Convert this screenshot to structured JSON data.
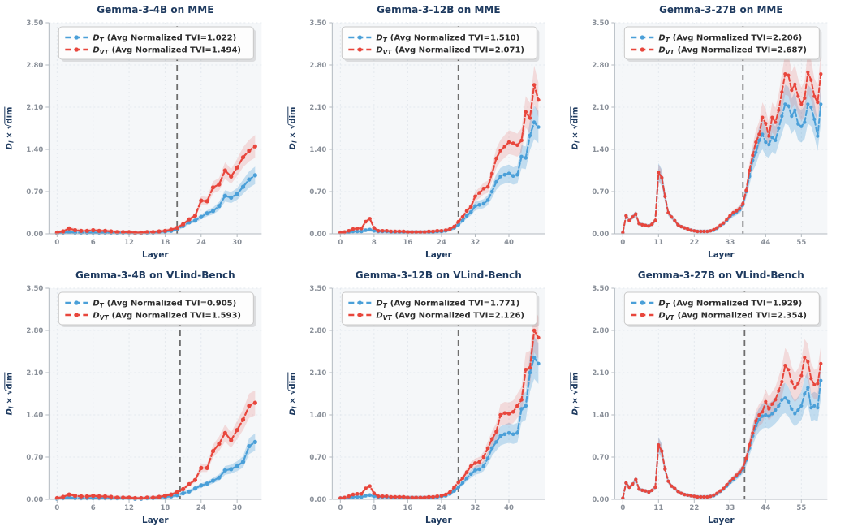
{
  "legend": {
    "d": "D"
  },
  "ylabel_parts": {
    "d": "D",
    "sub": "l",
    "times": "×",
    "root": "√",
    "dim": "dim"
  },
  "style": {
    "blue": "#4a9fd8",
    "red": "#e8463c",
    "blue_band": "rgba(74,159,216,0.30)",
    "red_band": "rgba(232,70,60,0.16)",
    "title_color": "#1e3a5f",
    "tick_color": "#8a9099",
    "grid_color": "#e4e9ee",
    "plot_bg": "#f5f7f9",
    "vline_color": "#6e6e6e",
    "spine_color": "#b3bac0",
    "legend_border": "#c9c9c9",
    "legend_text": "#2d2d2d",
    "band_frac_blue": 0.15,
    "band_frac_red": 0.13,
    "band_min": 0.03
  },
  "chart_data": [
    {
      "type": "line",
      "title": "Gemma-3-4B on MME",
      "xlabel": "Layer",
      "ylabel": "D_l × √dim",
      "ylim": [
        0,
        3.5
      ],
      "yticks": [
        0,
        0.7,
        1.4,
        2.1,
        2.8,
        3.5
      ],
      "ytick_labels": [
        "0.00",
        "0.70",
        "1.40",
        "2.10",
        "2.80",
        "3.50"
      ],
      "xticks": [
        0,
        6,
        12,
        18,
        24,
        30
      ],
      "xtick_labels": [
        "0",
        "6",
        "12",
        "18",
        "24",
        "30"
      ],
      "vline_x": 20,
      "series": [
        {
          "name": "D_T",
          "sub": "T",
          "label": "D_T (Avg Normalized TVI=1.022)",
          "legend_rest": "(Avg Normalized TVI=1.022)",
          "color_key": "blue",
          "values": [
            0.01,
            0.02,
            0.03,
            0.02,
            0.02,
            0.02,
            0.02,
            0.02,
            0.02,
            0.02,
            0.02,
            0.02,
            0.02,
            0.01,
            0.01,
            0.02,
            0.02,
            0.03,
            0.04,
            0.05,
            0.08,
            0.13,
            0.19,
            0.22,
            0.28,
            0.34,
            0.38,
            0.46,
            0.63,
            0.6,
            0.66,
            0.78,
            0.9,
            0.97
          ]
        },
        {
          "name": "D_VT",
          "sub": "VT",
          "label": "D_VT (Avg Normalized TVI=1.494)",
          "legend_rest": "(Avg Normalized TVI=1.494)",
          "color_key": "red",
          "values": [
            0.02,
            0.04,
            0.09,
            0.06,
            0.05,
            0.05,
            0.06,
            0.05,
            0.05,
            0.04,
            0.03,
            0.03,
            0.03,
            0.02,
            0.02,
            0.03,
            0.03,
            0.04,
            0.05,
            0.07,
            0.1,
            0.16,
            0.24,
            0.3,
            0.55,
            0.54,
            0.77,
            0.82,
            1.05,
            0.95,
            1.1,
            1.27,
            1.38,
            1.45
          ]
        }
      ]
    },
    {
      "type": "line",
      "title": "Gemma-3-12B on MME",
      "xlabel": "Layer",
      "ylabel": "D_l × √dim",
      "ylim": [
        0,
        3.5
      ],
      "yticks": [
        0,
        0.7,
        1.4,
        2.1,
        2.8,
        3.5
      ],
      "ytick_labels": [
        "0.00",
        "0.70",
        "1.40",
        "2.10",
        "2.80",
        "3.50"
      ],
      "xticks": [
        0,
        8,
        16,
        24,
        32,
        40
      ],
      "xtick_labels": [
        "0",
        "8",
        "16",
        "24",
        "32",
        "40"
      ],
      "vline_x": 28,
      "series": [
        {
          "name": "D_T",
          "sub": "T",
          "label": "D_T (Avg Normalized TVI=1.510)",
          "legend_rest": "(Avg Normalized TVI=1.510)",
          "color_key": "blue",
          "values": [
            0.02,
            0.02,
            0.03,
            0.04,
            0.04,
            0.04,
            0.06,
            0.07,
            0.05,
            0.04,
            0.04,
            0.04,
            0.03,
            0.03,
            0.03,
            0.03,
            0.03,
            0.03,
            0.03,
            0.03,
            0.03,
            0.03,
            0.03,
            0.04,
            0.04,
            0.05,
            0.07,
            0.1,
            0.15,
            0.22,
            0.3,
            0.36,
            0.46,
            0.48,
            0.5,
            0.56,
            0.7,
            0.86,
            0.95,
            0.98,
            1.0,
            0.96,
            0.98,
            1.28,
            1.26,
            1.63,
            1.85,
            1.77
          ]
        },
        {
          "name": "D_VT",
          "sub": "VT",
          "label": "D_VT (Avg Normalized TVI=2.071)",
          "legend_rest": "(Avg Normalized TVI=2.071)",
          "color_key": "red",
          "values": [
            0.02,
            0.03,
            0.05,
            0.08,
            0.09,
            0.09,
            0.2,
            0.25,
            0.1,
            0.05,
            0.05,
            0.05,
            0.04,
            0.04,
            0.04,
            0.04,
            0.03,
            0.03,
            0.03,
            0.03,
            0.03,
            0.04,
            0.04,
            0.05,
            0.05,
            0.06,
            0.08,
            0.12,
            0.2,
            0.28,
            0.38,
            0.45,
            0.62,
            0.68,
            0.75,
            0.78,
            1.0,
            1.25,
            1.38,
            1.45,
            1.52,
            1.5,
            1.47,
            1.55,
            2.02,
            1.92,
            2.47,
            2.22
          ]
        }
      ]
    },
    {
      "type": "line",
      "title": "Gemma-3-27B on MME",
      "xlabel": "Layer",
      "ylabel": "D_l × √dim",
      "ylim": [
        0,
        3.5
      ],
      "yticks": [
        0,
        0.7,
        1.4,
        2.1,
        2.8,
        3.5
      ],
      "ytick_labels": [
        "0.00",
        "0.70",
        "1.40",
        "2.10",
        "2.80",
        "3.50"
      ],
      "xticks": [
        0,
        11,
        22,
        33,
        44,
        55
      ],
      "xtick_labels": [
        "0",
        "11",
        "22",
        "33",
        "44",
        "55"
      ],
      "vline_x": 37,
      "series": [
        {
          "name": "D_T",
          "sub": "T",
          "label": "D_T (Avg Normalized TVI=2.206)",
          "legend_rest": "(Avg Normalized TVI=2.206)",
          "color_key": "blue",
          "values": [
            0.02,
            0.3,
            0.22,
            0.28,
            0.33,
            0.17,
            0.15,
            0.14,
            0.13,
            0.16,
            0.22,
            1.02,
            0.93,
            0.62,
            0.35,
            0.28,
            0.22,
            0.15,
            0.12,
            0.1,
            0.08,
            0.06,
            0.05,
            0.04,
            0.04,
            0.04,
            0.04,
            0.05,
            0.06,
            0.09,
            0.13,
            0.17,
            0.22,
            0.28,
            0.33,
            0.36,
            0.4,
            0.48,
            0.7,
            0.95,
            1.22,
            1.35,
            1.55,
            1.65,
            1.52,
            1.48,
            1.6,
            1.55,
            1.75,
            1.95,
            2.15,
            2.12,
            1.95,
            2.05,
            1.82,
            1.78,
            1.85,
            2.15,
            2.1,
            1.9,
            1.62,
            2.15
          ]
        },
        {
          "name": "D_VT",
          "sub": "VT",
          "label": "D_VT (Avg Normalized TVI=2.687)",
          "legend_rest": "(Avg Normalized TVI=2.687)",
          "color_key": "red",
          "values": [
            0.02,
            0.3,
            0.22,
            0.28,
            0.33,
            0.17,
            0.15,
            0.14,
            0.13,
            0.16,
            0.22,
            1.02,
            0.93,
            0.62,
            0.35,
            0.28,
            0.22,
            0.15,
            0.12,
            0.1,
            0.08,
            0.06,
            0.05,
            0.04,
            0.04,
            0.04,
            0.04,
            0.05,
            0.07,
            0.1,
            0.14,
            0.18,
            0.24,
            0.3,
            0.35,
            0.38,
            0.42,
            0.5,
            0.72,
            1.05,
            1.3,
            1.52,
            1.65,
            1.93,
            1.83,
            1.62,
            1.93,
            1.85,
            2.05,
            2.35,
            2.65,
            2.63,
            2.38,
            2.48,
            2.28,
            2.15,
            2.25,
            2.68,
            2.55,
            2.28,
            2.18,
            2.65
          ]
        }
      ]
    },
    {
      "type": "line",
      "title": "Gemma-3-4B on VLind-Bench",
      "xlabel": "Layer",
      "ylabel": "D_l × √dim",
      "ylim": [
        0,
        3.5
      ],
      "yticks": [
        0,
        0.7,
        1.4,
        2.1,
        2.8,
        3.5
      ],
      "ytick_labels": [
        "0.00",
        "0.70",
        "1.40",
        "2.10",
        "2.80",
        "3.50"
      ],
      "xticks": [
        0,
        6,
        12,
        18,
        24,
        30
      ],
      "xtick_labels": [
        "0",
        "6",
        "12",
        "18",
        "24",
        "30"
      ],
      "vline_x": 20.5,
      "series": [
        {
          "name": "D_T",
          "sub": "T",
          "label": "D_T (Avg Normalized TVI=0.905)",
          "legend_rest": "(Avg Normalized TVI=0.905)",
          "color_key": "blue",
          "values": [
            0.01,
            0.02,
            0.03,
            0.02,
            0.02,
            0.02,
            0.02,
            0.02,
            0.02,
            0.02,
            0.02,
            0.02,
            0.02,
            0.01,
            0.01,
            0.02,
            0.02,
            0.03,
            0.04,
            0.05,
            0.07,
            0.1,
            0.13,
            0.18,
            0.23,
            0.26,
            0.31,
            0.36,
            0.48,
            0.5,
            0.55,
            0.62,
            0.88,
            0.95
          ]
        },
        {
          "name": "D_VT",
          "sub": "VT",
          "label": "D_VT (Avg Normalized TVI=1.593)",
          "legend_rest": "(Avg Normalized TVI=1.593)",
          "color_key": "red",
          "values": [
            0.02,
            0.04,
            0.08,
            0.06,
            0.05,
            0.05,
            0.06,
            0.05,
            0.05,
            0.04,
            0.03,
            0.03,
            0.03,
            0.02,
            0.02,
            0.03,
            0.03,
            0.04,
            0.06,
            0.08,
            0.12,
            0.17,
            0.25,
            0.32,
            0.52,
            0.52,
            0.8,
            0.92,
            1.1,
            0.98,
            1.15,
            1.32,
            1.55,
            1.6
          ]
        }
      ]
    },
    {
      "type": "line",
      "title": "Gemma-3-12B on VLind-Bench",
      "xlabel": "Layer",
      "ylabel": "D_l × √dim",
      "ylim": [
        0,
        3.5
      ],
      "yticks": [
        0,
        0.7,
        1.4,
        2.1,
        2.8,
        3.5
      ],
      "ytick_labels": [
        "0.00",
        "0.70",
        "1.40",
        "2.10",
        "2.80",
        "3.50"
      ],
      "xticks": [
        0,
        8,
        16,
        24,
        32,
        40
      ],
      "xtick_labels": [
        "0",
        "8",
        "16",
        "24",
        "32",
        "40"
      ],
      "vline_x": 28,
      "series": [
        {
          "name": "D_T",
          "sub": "T",
          "label": "D_T (Avg Normalized TVI=1.771)",
          "legend_rest": "(Avg Normalized TVI=1.771)",
          "color_key": "blue",
          "values": [
            0.02,
            0.02,
            0.03,
            0.04,
            0.04,
            0.04,
            0.06,
            0.07,
            0.05,
            0.04,
            0.04,
            0.04,
            0.03,
            0.03,
            0.03,
            0.03,
            0.03,
            0.03,
            0.03,
            0.03,
            0.03,
            0.03,
            0.03,
            0.04,
            0.05,
            0.06,
            0.09,
            0.14,
            0.2,
            0.27,
            0.35,
            0.42,
            0.48,
            0.5,
            0.55,
            0.68,
            0.85,
            0.95,
            1.05,
            1.08,
            1.1,
            1.08,
            1.1,
            1.5,
            1.55,
            2.1,
            2.35,
            2.25
          ]
        },
        {
          "name": "D_VT",
          "sub": "VT",
          "label": "D_VT (Avg Normalized TVI=2.126)",
          "legend_rest": "(Avg Normalized TVI=2.126)",
          "color_key": "red",
          "values": [
            0.02,
            0.03,
            0.05,
            0.08,
            0.09,
            0.09,
            0.18,
            0.22,
            0.1,
            0.05,
            0.05,
            0.05,
            0.04,
            0.04,
            0.04,
            0.04,
            0.03,
            0.03,
            0.03,
            0.03,
            0.03,
            0.04,
            0.04,
            0.05,
            0.06,
            0.08,
            0.12,
            0.2,
            0.28,
            0.35,
            0.45,
            0.55,
            0.6,
            0.62,
            0.7,
            0.85,
            1.0,
            1.12,
            1.4,
            1.43,
            1.42,
            1.45,
            1.55,
            1.65,
            2.15,
            2.18,
            2.8,
            2.68
          ]
        }
      ]
    },
    {
      "type": "line",
      "title": "Gemma-3-27B on VLind-Bench",
      "xlabel": "Layer",
      "ylabel": "D_l × √dim",
      "ylim": [
        0,
        3.5
      ],
      "yticks": [
        0,
        0.7,
        1.4,
        2.1,
        2.8,
        3.5
      ],
      "ytick_labels": [
        "0.00",
        "0.70",
        "1.40",
        "2.10",
        "2.80",
        "3.50"
      ],
      "xticks": [
        0,
        11,
        22,
        33,
        44,
        55
      ],
      "xtick_labels": [
        "0",
        "11",
        "22",
        "33",
        "44",
        "55"
      ],
      "vline_x": 37.5,
      "series": [
        {
          "name": "D_T",
          "sub": "T",
          "label": "D_T (Avg Normalized TVI=1.929)",
          "legend_rest": "(Avg Normalized TVI=1.929)",
          "color_key": "blue",
          "values": [
            0.02,
            0.27,
            0.2,
            0.25,
            0.33,
            0.17,
            0.15,
            0.14,
            0.12,
            0.15,
            0.2,
            0.9,
            0.8,
            0.5,
            0.3,
            0.22,
            0.18,
            0.13,
            0.1,
            0.08,
            0.07,
            0.06,
            0.05,
            0.04,
            0.04,
            0.04,
            0.04,
            0.05,
            0.06,
            0.09,
            0.13,
            0.17,
            0.22,
            0.28,
            0.33,
            0.38,
            0.43,
            0.5,
            0.65,
            0.85,
            1.05,
            1.22,
            1.32,
            1.38,
            1.4,
            1.38,
            1.42,
            1.48,
            1.55,
            1.65,
            1.68,
            1.62,
            1.5,
            1.42,
            1.48,
            1.55,
            1.75,
            1.85,
            1.52,
            1.55,
            1.52,
            1.97
          ]
        },
        {
          "name": "D_VT",
          "sub": "VT",
          "label": "D_VT (Avg Normalized TVI=2.354)",
          "legend_rest": "(Avg Normalized TVI=2.354)",
          "color_key": "red",
          "values": [
            0.02,
            0.27,
            0.2,
            0.25,
            0.33,
            0.17,
            0.15,
            0.14,
            0.12,
            0.15,
            0.2,
            0.9,
            0.8,
            0.5,
            0.3,
            0.22,
            0.18,
            0.13,
            0.1,
            0.08,
            0.07,
            0.06,
            0.05,
            0.04,
            0.04,
            0.04,
            0.04,
            0.05,
            0.07,
            0.1,
            0.14,
            0.18,
            0.24,
            0.3,
            0.35,
            0.4,
            0.45,
            0.52,
            0.68,
            0.9,
            1.1,
            1.3,
            1.4,
            1.45,
            1.62,
            1.5,
            1.58,
            1.65,
            1.8,
            1.95,
            2.22,
            2.15,
            1.95,
            1.85,
            1.92,
            2.05,
            2.35,
            2.28,
            2.0,
            1.9,
            1.92,
            2.25
          ]
        }
      ]
    }
  ]
}
